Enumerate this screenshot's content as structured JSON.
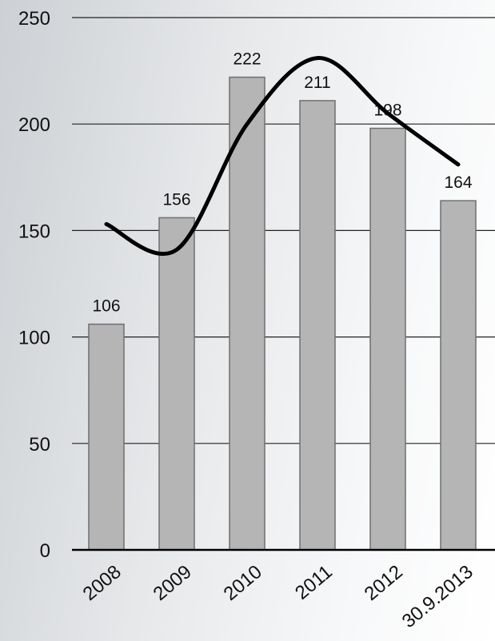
{
  "chart_data": {
    "type": "bar",
    "title": "",
    "xlabel": "",
    "ylabel": "",
    "categories": [
      "2008",
      "2009",
      "2010",
      "2011",
      "2012",
      "30.9.2013"
    ],
    "values": [
      106,
      156,
      222,
      211,
      198,
      164
    ],
    "data_labels": [
      "106",
      "156",
      "222",
      "211",
      "198",
      "164"
    ],
    "ylim": [
      0,
      250
    ],
    "yticks": [
      0,
      50,
      100,
      150,
      200,
      250
    ],
    "ytick_labels": [
      "0",
      "50",
      "100",
      "150",
      "200",
      "250"
    ],
    "grid": true,
    "legend": "none",
    "trend_line": {
      "type": "line",
      "smooth": true,
      "values": [
        153,
        141,
        200,
        231,
        205,
        181
      ]
    },
    "colors": {
      "bar": "#b5b5b5",
      "bar_edge": "#6f6f6f",
      "line": "#000000",
      "grid": "#222222",
      "text": "#111111"
    }
  }
}
